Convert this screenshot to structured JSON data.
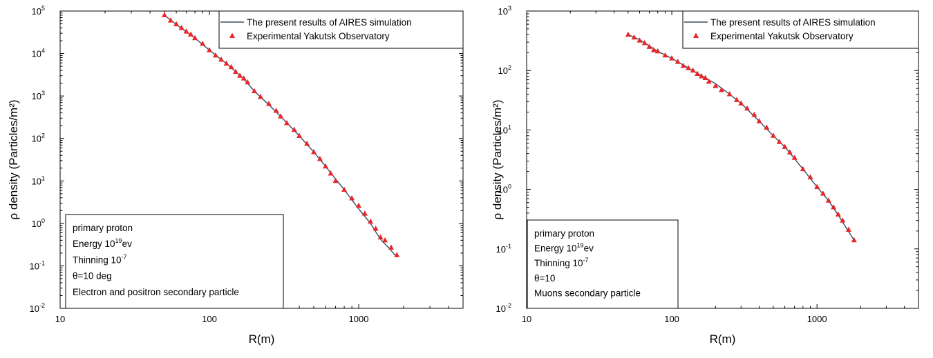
{
  "chart_data": [
    {
      "type": "line",
      "xlabel": "R(m)",
      "ylabel": "ρ density (Particles/m²)",
      "xscale": "log",
      "yscale": "log",
      "xlim": [
        10,
        5000
      ],
      "ylim": [
        0.01,
        100000
      ],
      "x_ticks": [
        "10",
        "100",
        "1000"
      ],
      "y_ticks": [
        {
          "base": "10",
          "exp": "-2"
        },
        {
          "base": "10",
          "exp": "-1"
        },
        {
          "base": "10",
          "exp": "0"
        },
        {
          "base": "10",
          "exp": "1"
        },
        {
          "base": "10",
          "exp": "2"
        },
        {
          "base": "10",
          "exp": "3"
        },
        {
          "base": "10",
          "exp": "4"
        },
        {
          "base": "10",
          "exp": "5"
        }
      ],
      "legend_position": "top-right",
      "series": [
        {
          "name": "The present results of AIRES simulation",
          "kind": "line",
          "color": "#3a4a63",
          "x": [
            50,
            60,
            80,
            100,
            130,
            170,
            200,
            250,
            300,
            400,
            500,
            600,
            800,
            1000,
            1200,
            1400,
            1600,
            1800
          ],
          "y": [
            80000,
            48000,
            23000,
            12000,
            5800,
            2500,
            1300,
            620,
            330,
            115,
            48,
            22,
            6.2,
            2.2,
            1.0,
            0.42,
            0.26,
            0.16
          ]
        },
        {
          "name": "Experimental Yakutsk Observatory",
          "kind": "scatter",
          "marker": "triangle",
          "color": "#e8262a",
          "x": [
            50,
            55,
            60,
            65,
            70,
            75,
            80,
            90,
            100,
            110,
            120,
            130,
            140,
            150,
            160,
            170,
            180,
            200,
            220,
            250,
            280,
            300,
            330,
            370,
            400,
            450,
            500,
            550,
            600,
            650,
            700,
            800,
            900,
            1000,
            1100,
            1200,
            1300,
            1400,
            1500,
            1650,
            1800
          ],
          "y": [
            80000,
            60000,
            49000,
            40000,
            33000,
            28000,
            23000,
            17000,
            12000,
            9000,
            7200,
            5800,
            4800,
            3700,
            3000,
            2600,
            2100,
            1300,
            950,
            650,
            450,
            330,
            230,
            160,
            115,
            75,
            48,
            33,
            22,
            15,
            10,
            6.2,
            3.9,
            2.6,
            1.7,
            1.1,
            0.75,
            0.47,
            0.4,
            0.27,
            0.18
          ]
        }
      ],
      "annotation": [
        {
          "text": "primary proton"
        },
        {
          "text": "Energy 10",
          "sup": "19",
          "tail": "ev"
        },
        {
          "text": "Thinning 10",
          "sup": "-7"
        },
        {
          "text": "θ=10 deg"
        },
        {
          "text": "Electron and positron secondary particle"
        }
      ]
    },
    {
      "type": "line",
      "xlabel": "R(m)",
      "ylabel": "ρ density (Particles/m²)",
      "xscale": "log",
      "yscale": "log",
      "xlim": [
        10,
        5000
      ],
      "ylim": [
        0.01,
        1000
      ],
      "x_ticks": [
        "10",
        "100",
        "1000"
      ],
      "y_ticks": [
        {
          "base": "10",
          "exp": "-2"
        },
        {
          "base": "10",
          "exp": "-1"
        },
        {
          "base": "10",
          "exp": "0"
        },
        {
          "base": "10",
          "exp": "1"
        },
        {
          "base": "10",
          "exp": "2"
        },
        {
          "base": "10",
          "exp": "3"
        }
      ],
      "legend_position": "top-right",
      "series": [
        {
          "name": "The present results of AIRES simulation",
          "kind": "line",
          "color": "#3a4a63",
          "x": [
            50,
            60,
            80,
            100,
            130,
            170,
            200,
            250,
            300,
            400,
            500,
            600,
            800,
            1000,
            1200,
            1400,
            1600,
            1800
          ],
          "y": [
            400,
            330,
            210,
            160,
            110,
            75,
            60,
            40,
            28,
            14,
            8.0,
            5.2,
            2.2,
            1.1,
            0.65,
            0.37,
            0.22,
            0.14
          ]
        },
        {
          "name": "Experimental Yakutsk Observatory",
          "kind": "scatter",
          "marker": "triangle",
          "color": "#e8262a",
          "x": [
            50,
            55,
            60,
            65,
            70,
            75,
            80,
            90,
            100,
            110,
            120,
            130,
            140,
            150,
            160,
            170,
            180,
            200,
            220,
            250,
            280,
            300,
            330,
            370,
            400,
            450,
            500,
            550,
            600,
            650,
            700,
            800,
            900,
            1000,
            1100,
            1200,
            1300,
            1400,
            1500,
            1650,
            1800
          ],
          "y": [
            400,
            360,
            320,
            290,
            250,
            220,
            210,
            180,
            160,
            140,
            120,
            110,
            100,
            88,
            80,
            75,
            65,
            55,
            47,
            40,
            32,
            28,
            23,
            18,
            14,
            11,
            8.0,
            6.3,
            5.2,
            4.2,
            3.4,
            2.2,
            1.6,
            1.1,
            0.85,
            0.65,
            0.5,
            0.38,
            0.3,
            0.21,
            0.14
          ]
        }
      ],
      "annotation": [
        {
          "text": "primary proton"
        },
        {
          "text": "Energy 10",
          "sup": "19",
          "tail": "ev"
        },
        {
          "text": "Thinning 10",
          "sup": "-7"
        },
        {
          "text": "θ=10"
        },
        {
          "text": "Muons secondary particle"
        }
      ]
    }
  ]
}
